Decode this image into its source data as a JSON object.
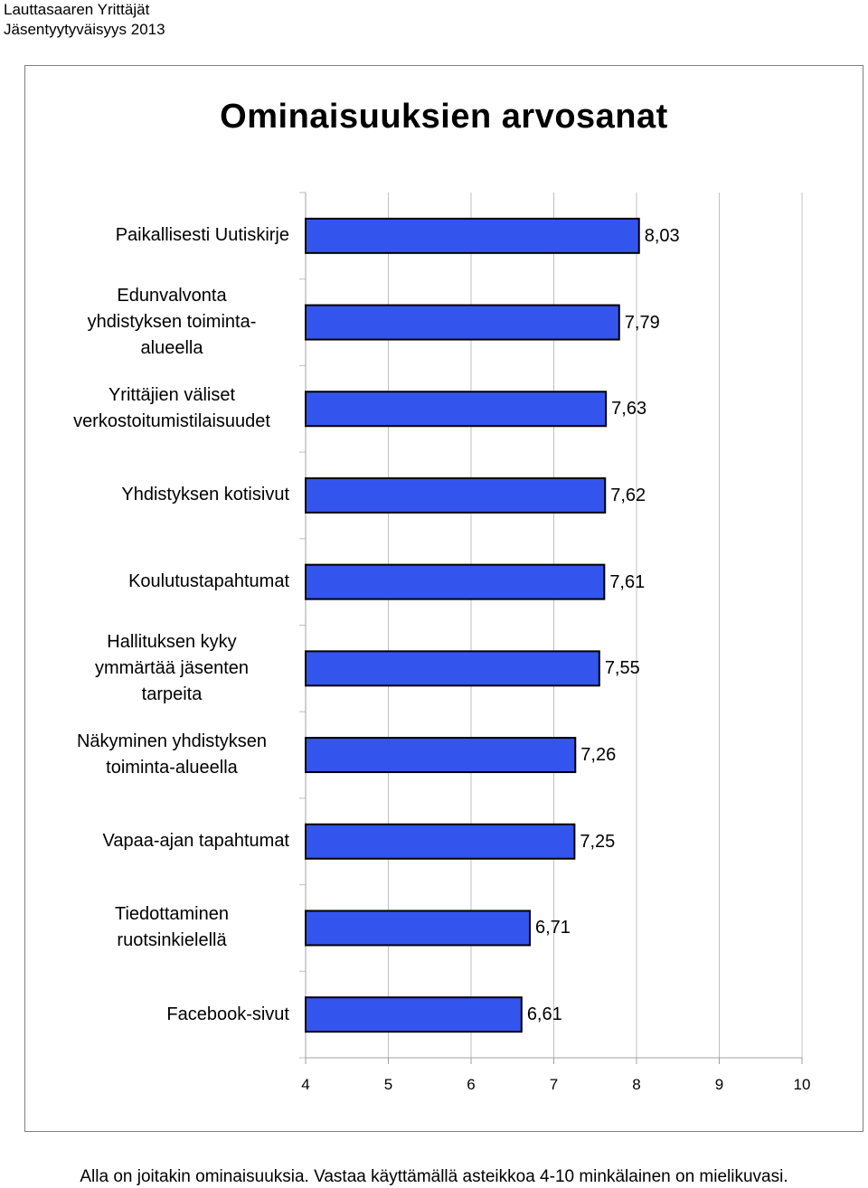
{
  "header": {
    "line1": "Lauttasaaren Yrittäjät",
    "line2": "Jäsentyytyväisyys 2013"
  },
  "footnote": "Alla on joitakin ominaisuuksia. Vastaa käyttämällä asteikkoa 4-10 minkälainen on mielikuvasi.",
  "colors": {
    "bar": "#3355ee",
    "bar_border": "#000000",
    "grid": "#c0c0c0"
  },
  "chart_data": {
    "type": "bar",
    "orientation": "horizontal",
    "title": "Ominaisuuksien arvosanat",
    "categories": [
      "Paikallisesti Uutiskirje",
      "Edunvalvonta yhdistyksen toiminta-alueella",
      "Yrittäjien väliset verkostoitumistilaisuudet",
      "Yhdistyksen kotisivut",
      "Koulutustapahtumat",
      "Hallituksen kyky ymmärtää jäsenten tarpeita",
      "Näkyminen yhdistyksen toiminta-alueella",
      "Vapaa-ajan tapahtumat",
      "Tiedottaminen ruotsinkielellä",
      "Facebook-sivut"
    ],
    "category_lines": [
      [
        "Paikallisesti Uutiskirje"
      ],
      [
        "Edunvalvonta",
        "yhdistyksen toiminta-",
        "alueella"
      ],
      [
        "Yrittäjien väliset",
        "verkostoitumistilaisuudet"
      ],
      [
        "Yhdistyksen kotisivut"
      ],
      [
        "Koulutustapahtumat"
      ],
      [
        "Hallituksen kyky",
        "ymmärtää jäsenten",
        "tarpeita"
      ],
      [
        "Näkyminen yhdistyksen",
        "toiminta-alueella"
      ],
      [
        "Vapaa-ajan tapahtumat"
      ],
      [
        "Tiedottaminen",
        "ruotsinkielellä"
      ],
      [
        "Facebook-sivut"
      ]
    ],
    "values": [
      8.03,
      7.79,
      7.63,
      7.62,
      7.61,
      7.55,
      7.26,
      7.25,
      6.71,
      6.61
    ],
    "value_labels": [
      "8,03",
      "7,79",
      "7,63",
      "7,62",
      "7,61",
      "7,55",
      "7,26",
      "7,25",
      "6,71",
      "6,61"
    ],
    "xlim": [
      4,
      10
    ],
    "xticks": [
      4,
      5,
      6,
      7,
      8,
      9,
      10
    ],
    "grid": true,
    "xlabel": "",
    "ylabel": ""
  }
}
